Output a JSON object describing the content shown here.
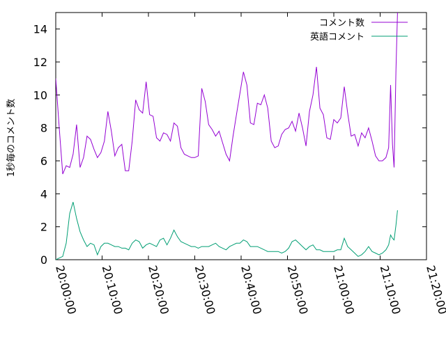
{
  "chart_data": {
    "type": "line",
    "title": "",
    "xlabel": "",
    "ylabel": "1秒毎のコメント数",
    "x_start": "20:00:00",
    "x_end": "21:20:00",
    "x_ticks": [
      "20:00:00",
      "20:10:00",
      "20:20:00",
      "20:30:00",
      "20:40:00",
      "20:50:00",
      "21:00:00",
      "21:10:00",
      "21:20:00"
    ],
    "ylim": [
      0,
      15
    ],
    "y_ticks": [
      0,
      2,
      4,
      6,
      8,
      10,
      12,
      14
    ],
    "grid": false,
    "legend_position": "top-right",
    "series": [
      {
        "name": "コメント数",
        "color": "#9400d3",
        "points": [
          [
            "20:00:00",
            11.0
          ],
          [
            "20:00:45",
            8.0
          ],
          [
            "20:01:30",
            5.2
          ],
          [
            "20:02:15",
            5.7
          ],
          [
            "20:03:00",
            5.6
          ],
          [
            "20:03:45",
            6.4
          ],
          [
            "20:04:30",
            8.2
          ],
          [
            "20:05:15",
            5.6
          ],
          [
            "20:06:00",
            6.2
          ],
          [
            "20:06:45",
            7.5
          ],
          [
            "20:07:30",
            7.3
          ],
          [
            "20:08:15",
            6.7
          ],
          [
            "20:09:00",
            6.2
          ],
          [
            "20:09:45",
            6.5
          ],
          [
            "20:10:30",
            7.2
          ],
          [
            "20:11:15",
            9.0
          ],
          [
            "20:12:00",
            7.8
          ],
          [
            "20:12:45",
            6.3
          ],
          [
            "20:13:30",
            6.8
          ],
          [
            "20:14:15",
            7.0
          ],
          [
            "20:15:00",
            5.4
          ],
          [
            "20:15:45",
            5.4
          ],
          [
            "20:16:30",
            7.2
          ],
          [
            "20:17:15",
            9.7
          ],
          [
            "20:18:00",
            9.1
          ],
          [
            "20:18:45",
            8.9
          ],
          [
            "20:19:30",
            10.8
          ],
          [
            "20:20:15",
            8.8
          ],
          [
            "20:21:00",
            8.7
          ],
          [
            "20:21:45",
            7.4
          ],
          [
            "20:22:30",
            7.2
          ],
          [
            "20:23:15",
            7.7
          ],
          [
            "20:24:00",
            7.6
          ],
          [
            "20:24:45",
            7.2
          ],
          [
            "20:25:30",
            8.3
          ],
          [
            "20:26:15",
            8.1
          ],
          [
            "20:27:00",
            6.8
          ],
          [
            "20:27:45",
            6.4
          ],
          [
            "20:28:30",
            6.3
          ],
          [
            "20:29:15",
            6.2
          ],
          [
            "20:30:00",
            6.2
          ],
          [
            "20:30:45",
            6.3
          ],
          [
            "20:31:30",
            10.4
          ],
          [
            "20:32:15",
            9.6
          ],
          [
            "20:33:00",
            8.2
          ],
          [
            "20:33:45",
            7.9
          ],
          [
            "20:34:30",
            7.5
          ],
          [
            "20:35:15",
            7.8
          ],
          [
            "20:36:00",
            7.1
          ],
          [
            "20:36:45",
            6.4
          ],
          [
            "20:37:30",
            6.0
          ],
          [
            "20:38:15",
            7.5
          ],
          [
            "20:39:00",
            8.8
          ],
          [
            "20:39:45",
            10.1
          ],
          [
            "20:40:30",
            11.4
          ],
          [
            "20:41:15",
            10.6
          ],
          [
            "20:42:00",
            8.3
          ],
          [
            "20:42:45",
            8.2
          ],
          [
            "20:43:30",
            9.5
          ],
          [
            "20:44:15",
            9.4
          ],
          [
            "20:45:00",
            10.0
          ],
          [
            "20:45:45",
            9.2
          ],
          [
            "20:46:30",
            7.2
          ],
          [
            "20:47:15",
            6.8
          ],
          [
            "20:48:00",
            6.9
          ],
          [
            "20:48:45",
            7.6
          ],
          [
            "20:49:30",
            7.9
          ],
          [
            "20:50:15",
            8.0
          ],
          [
            "20:51:00",
            8.4
          ],
          [
            "20:51:45",
            7.8
          ],
          [
            "20:52:30",
            8.9
          ],
          [
            "20:53:15",
            8.0
          ],
          [
            "20:54:00",
            6.9
          ],
          [
            "20:54:45",
            9.0
          ],
          [
            "20:55:30",
            10.0
          ],
          [
            "20:56:15",
            11.7
          ],
          [
            "20:57:00",
            9.2
          ],
          [
            "20:57:45",
            8.8
          ],
          [
            "20:58:30",
            7.4
          ],
          [
            "20:59:15",
            7.3
          ],
          [
            "21:00:00",
            8.5
          ],
          [
            "21:00:45",
            8.3
          ],
          [
            "21:01:30",
            8.6
          ],
          [
            "21:02:15",
            10.5
          ],
          [
            "21:03:00",
            8.9
          ],
          [
            "21:03:45",
            7.5
          ],
          [
            "21:04:30",
            7.6
          ],
          [
            "21:05:15",
            6.9
          ],
          [
            "21:06:00",
            7.7
          ],
          [
            "21:06:45",
            7.4
          ],
          [
            "21:07:30",
            8.0
          ],
          [
            "21:08:15",
            7.2
          ],
          [
            "21:09:00",
            6.3
          ],
          [
            "21:09:45",
            6.0
          ],
          [
            "21:10:30",
            6.0
          ],
          [
            "21:11:15",
            6.2
          ],
          [
            "21:11:50",
            6.8
          ],
          [
            "21:12:15",
            10.6
          ],
          [
            "21:12:40",
            7.0
          ],
          [
            "21:13:00",
            5.6
          ],
          [
            "21:13:25",
            11.5
          ],
          [
            "21:13:45",
            15.0
          ]
        ]
      },
      {
        "name": "英語コメント",
        "color": "#009e73",
        "points": [
          [
            "20:00:00",
            0.0
          ],
          [
            "20:00:45",
            0.1
          ],
          [
            "20:01:30",
            0.2
          ],
          [
            "20:02:15",
            1.0
          ],
          [
            "20:03:00",
            2.8
          ],
          [
            "20:03:45",
            3.5
          ],
          [
            "20:04:30",
            2.5
          ],
          [
            "20:05:15",
            1.7
          ],
          [
            "20:06:00",
            1.2
          ],
          [
            "20:06:45",
            0.8
          ],
          [
            "20:07:30",
            1.0
          ],
          [
            "20:08:15",
            0.9
          ],
          [
            "20:09:00",
            0.3
          ],
          [
            "20:09:45",
            0.8
          ],
          [
            "20:10:30",
            1.0
          ],
          [
            "20:11:15",
            1.0
          ],
          [
            "20:12:00",
            0.9
          ],
          [
            "20:12:45",
            0.8
          ],
          [
            "20:13:30",
            0.8
          ],
          [
            "20:14:15",
            0.7
          ],
          [
            "20:15:00",
            0.7
          ],
          [
            "20:15:45",
            0.6
          ],
          [
            "20:16:30",
            1.0
          ],
          [
            "20:17:15",
            1.2
          ],
          [
            "20:18:00",
            1.1
          ],
          [
            "20:18:45",
            0.7
          ],
          [
            "20:19:30",
            0.9
          ],
          [
            "20:20:15",
            1.0
          ],
          [
            "20:21:00",
            0.9
          ],
          [
            "20:21:45",
            0.8
          ],
          [
            "20:22:30",
            1.2
          ],
          [
            "20:23:15",
            1.3
          ],
          [
            "20:24:00",
            0.9
          ],
          [
            "20:24:45",
            1.3
          ],
          [
            "20:25:30",
            1.8
          ],
          [
            "20:26:15",
            1.4
          ],
          [
            "20:27:00",
            1.1
          ],
          [
            "20:27:45",
            1.0
          ],
          [
            "20:28:30",
            0.9
          ],
          [
            "20:29:15",
            0.8
          ],
          [
            "20:30:00",
            0.8
          ],
          [
            "20:30:45",
            0.7
          ],
          [
            "20:31:30",
            0.8
          ],
          [
            "20:32:15",
            0.8
          ],
          [
            "20:33:00",
            0.8
          ],
          [
            "20:33:45",
            0.9
          ],
          [
            "20:34:30",
            1.0
          ],
          [
            "20:35:15",
            0.8
          ],
          [
            "20:36:00",
            0.7
          ],
          [
            "20:36:45",
            0.6
          ],
          [
            "20:37:30",
            0.8
          ],
          [
            "20:38:15",
            0.9
          ],
          [
            "20:39:00",
            1.0
          ],
          [
            "20:39:45",
            1.0
          ],
          [
            "20:40:30",
            1.2
          ],
          [
            "20:41:15",
            1.1
          ],
          [
            "20:42:00",
            0.8
          ],
          [
            "20:42:45",
            0.8
          ],
          [
            "20:43:30",
            0.8
          ],
          [
            "20:44:15",
            0.7
          ],
          [
            "20:45:00",
            0.6
          ],
          [
            "20:45:45",
            0.5
          ],
          [
            "20:46:30",
            0.5
          ],
          [
            "20:47:15",
            0.5
          ],
          [
            "20:48:00",
            0.5
          ],
          [
            "20:48:45",
            0.4
          ],
          [
            "20:49:30",
            0.5
          ],
          [
            "20:50:15",
            0.7
          ],
          [
            "20:51:00",
            1.1
          ],
          [
            "20:51:45",
            1.2
          ],
          [
            "20:52:30",
            1.0
          ],
          [
            "20:53:15",
            0.8
          ],
          [
            "20:54:00",
            0.6
          ],
          [
            "20:54:45",
            0.8
          ],
          [
            "20:55:30",
            0.9
          ],
          [
            "20:56:15",
            0.6
          ],
          [
            "20:57:00",
            0.6
          ],
          [
            "20:57:45",
            0.5
          ],
          [
            "20:58:30",
            0.5
          ],
          [
            "20:59:15",
            0.5
          ],
          [
            "21:00:00",
            0.5
          ],
          [
            "21:00:45",
            0.6
          ],
          [
            "21:01:30",
            0.6
          ],
          [
            "21:02:15",
            1.3
          ],
          [
            "21:03:00",
            0.8
          ],
          [
            "21:03:45",
            0.6
          ],
          [
            "21:04:30",
            0.4
          ],
          [
            "21:05:15",
            0.2
          ],
          [
            "21:06:00",
            0.3
          ],
          [
            "21:06:45",
            0.5
          ],
          [
            "21:07:30",
            0.8
          ],
          [
            "21:08:15",
            0.5
          ],
          [
            "21:09:00",
            0.4
          ],
          [
            "21:09:45",
            0.3
          ],
          [
            "21:10:30",
            0.4
          ],
          [
            "21:11:15",
            0.6
          ],
          [
            "21:11:50",
            0.9
          ],
          [
            "21:12:15",
            1.5
          ],
          [
            "21:12:40",
            1.3
          ],
          [
            "21:13:00",
            1.2
          ],
          [
            "21:13:25",
            2.1
          ],
          [
            "21:13:45",
            3.0
          ]
        ]
      }
    ]
  }
}
